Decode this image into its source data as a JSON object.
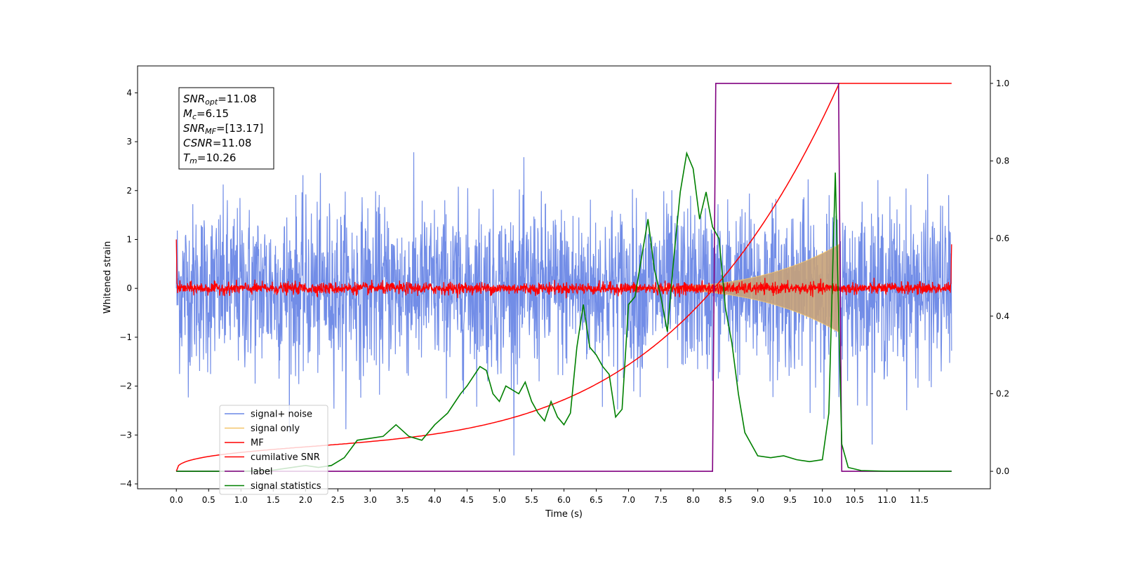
{
  "chart_data": {
    "type": "line",
    "xlabel": "Time (s)",
    "ylabel": "Whitened strain",
    "xlim": [
      -0.6,
      12.6
    ],
    "ylim": [
      -4.1,
      4.55
    ],
    "y2lim": [
      -0.045,
      1.045
    ],
    "x_ticks": [
      "0.0",
      "0.5",
      "1.0",
      "1.5",
      "2.0",
      "2.5",
      "3.0",
      "3.5",
      "4.0",
      "4.5",
      "5.0",
      "5.5",
      "6.0",
      "6.5",
      "7.0",
      "7.5",
      "8.0",
      "8.5",
      "9.0",
      "9.5",
      "10.0",
      "10.5",
      "11.0",
      "11.5"
    ],
    "y_ticks": [
      "4",
      "3",
      "2",
      "1",
      "0",
      "−1",
      "−2",
      "−3",
      "−4"
    ],
    "y2_ticks": [
      "1.0",
      "0.8",
      "0.6",
      "0.4",
      "0.2",
      "0.0"
    ],
    "info_box": [
      {
        "main": "SNR",
        "sub": "opt",
        "value": "=11.08"
      },
      {
        "main": "M",
        "sub": "c",
        "value": "=6.15"
      },
      {
        "main": "SNR",
        "sub": "MF",
        "value": "=[13.17]"
      },
      {
        "main": "CSNR",
        "sub": "",
        "value": "=11.08"
      },
      {
        "main": "T",
        "sub": "m",
        "value": "=10.26"
      }
    ],
    "series": [
      {
        "name": "signal+ noise",
        "color": "#6a87e6",
        "description_noise_sd": 1.0,
        "x_range": [
          0.0,
          12.0
        ]
      },
      {
        "name": "signal only",
        "color": "#f5c66a",
        "envelope_end": 10.26,
        "envelope_peak": 0.9
      },
      {
        "name": "MF",
        "color": "#ff0000",
        "x_range": [
          0.0,
          12.0
        ],
        "noise_amp": 0.06
      },
      {
        "name": "cumilative SNR",
        "color": "#ff0000",
        "x_range": [
          0.0,
          10.26
        ],
        "y2_start": 0.0,
        "y2_end": 1.0
      },
      {
        "name": "label",
        "color": "#800080",
        "points": [
          [
            0.0,
            0.0
          ],
          [
            8.3,
            0.0
          ],
          [
            8.35,
            1.0
          ],
          [
            10.25,
            1.0
          ],
          [
            10.3,
            0.0
          ],
          [
            12.0,
            0.0
          ]
        ]
      },
      {
        "name": "signal statistics",
        "color": "#008000",
        "points": [
          [
            0.0,
            0.0
          ],
          [
            1.0,
            0.0
          ],
          [
            1.5,
            0.003
          ],
          [
            2.0,
            0.015
          ],
          [
            2.2,
            0.01
          ],
          [
            2.4,
            0.015
          ],
          [
            2.6,
            0.035
          ],
          [
            2.8,
            0.08
          ],
          [
            3.0,
            0.085
          ],
          [
            3.2,
            0.09
          ],
          [
            3.4,
            0.12
          ],
          [
            3.6,
            0.09
          ],
          [
            3.8,
            0.08
          ],
          [
            4.0,
            0.12
          ],
          [
            4.2,
            0.15
          ],
          [
            4.4,
            0.2
          ],
          [
            4.5,
            0.22
          ],
          [
            4.7,
            0.27
          ],
          [
            4.8,
            0.26
          ],
          [
            4.9,
            0.2
          ],
          [
            5.0,
            0.18
          ],
          [
            5.1,
            0.22
          ],
          [
            5.3,
            0.2
          ],
          [
            5.4,
            0.23
          ],
          [
            5.5,
            0.18
          ],
          [
            5.6,
            0.15
          ],
          [
            5.7,
            0.13
          ],
          [
            5.8,
            0.18
          ],
          [
            5.9,
            0.14
          ],
          [
            6.0,
            0.12
          ],
          [
            6.1,
            0.15
          ],
          [
            6.2,
            0.32
          ],
          [
            6.3,
            0.43
          ],
          [
            6.4,
            0.32
          ],
          [
            6.5,
            0.3
          ],
          [
            6.6,
            0.27
          ],
          [
            6.7,
            0.25
          ],
          [
            6.8,
            0.14
          ],
          [
            6.9,
            0.16
          ],
          [
            7.0,
            0.43
          ],
          [
            7.1,
            0.45
          ],
          [
            7.3,
            0.65
          ],
          [
            7.4,
            0.52
          ],
          [
            7.5,
            0.45
          ],
          [
            7.6,
            0.36
          ],
          [
            7.7,
            0.55
          ],
          [
            7.8,
            0.72
          ],
          [
            7.9,
            0.82
          ],
          [
            8.0,
            0.78
          ],
          [
            8.1,
            0.65
          ],
          [
            8.2,
            0.72
          ],
          [
            8.3,
            0.63
          ],
          [
            8.4,
            0.6
          ],
          [
            8.5,
            0.42
          ],
          [
            8.6,
            0.33
          ],
          [
            8.7,
            0.2
          ],
          [
            8.8,
            0.1
          ],
          [
            9.0,
            0.04
          ],
          [
            9.2,
            0.035
          ],
          [
            9.4,
            0.04
          ],
          [
            9.6,
            0.03
          ],
          [
            9.8,
            0.025
          ],
          [
            10.0,
            0.03
          ],
          [
            10.1,
            0.15
          ],
          [
            10.2,
            0.77
          ],
          [
            10.3,
            0.07
          ],
          [
            10.4,
            0.01
          ],
          [
            10.6,
            0.002
          ],
          [
            11.0,
            0.0
          ],
          [
            12.0,
            0.0
          ]
        ]
      }
    ],
    "legend_position": "lower-left"
  }
}
